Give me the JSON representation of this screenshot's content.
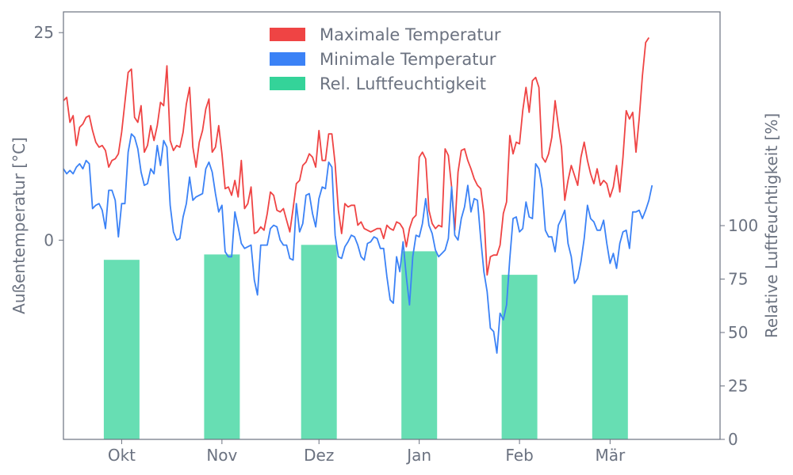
{
  "chart_data": {
    "type": "combo",
    "y_left_label": "Außentemperatur [°C]",
    "y_right_label": "Relative Luftfeuchtigkeit [%]",
    "y_left_lim": [
      -24,
      27.5
    ],
    "y_right_lim": [
      0,
      200
    ],
    "y_left_ticks": [
      0,
      25
    ],
    "y_right_ticks": [
      0,
      25,
      50,
      75,
      100
    ],
    "x_lim": [
      "2016-09-13",
      "2017-04-04"
    ],
    "x_ticks": [
      {
        "date": "2016-10-01",
        "label": "Okt"
      },
      {
        "date": "2016-11-01",
        "label": "Nov"
      },
      {
        "date": "2016-12-01",
        "label": "Dez"
      },
      {
        "date": "2017-01-01",
        "label": "Jan"
      },
      {
        "date": "2017-02-01",
        "label": "Feb"
      },
      {
        "date": "2017-03-01",
        "label": "Mär"
      }
    ],
    "legend": {
      "position": "top-center",
      "items": [
        {
          "label": "Maximale Temperatur",
          "color": "#ef4444"
        },
        {
          "label": "Minimale Temperatur",
          "color": "#3b82f6"
        },
        {
          "label": "Rel. Luftfeuchtigkeit",
          "color": "#34d399"
        }
      ]
    },
    "humidity_bars": [
      {
        "month": "Okt",
        "date": "2016-10-01",
        "value": 84
      },
      {
        "month": "Nov",
        "date": "2016-11-01",
        "value": 86.5
      },
      {
        "month": "Dez",
        "date": "2016-12-01",
        "value": 91
      },
      {
        "month": "Jan",
        "date": "2017-01-01",
        "value": 88
      },
      {
        "month": "Feb",
        "date": "2017-02-01",
        "value": 77
      },
      {
        "month": "Mär",
        "date": "2017-03-01",
        "value": 67.5
      }
    ],
    "series": [
      {
        "name": "Maximale Temperatur",
        "color": "#ef4444",
        "start_date": "2016-09-13",
        "step_days": 1,
        "values": [
          16.8,
          17.2,
          14.2,
          15.0,
          11.4,
          13.6,
          14.0,
          14.8,
          15.0,
          13.2,
          11.8,
          11.2,
          11.4,
          10.8,
          8.8,
          9.6,
          9.8,
          10.4,
          13.0,
          16.6,
          20.2,
          20.6,
          14.8,
          14.2,
          16.2,
          10.6,
          11.4,
          13.8,
          12.0,
          13.8,
          16.6,
          16.2,
          21.0,
          12.0,
          10.8,
          11.4,
          11.2,
          13.0,
          16.4,
          18.4,
          11.2,
          8.8,
          11.8,
          13.2,
          15.8,
          17.0,
          10.6,
          11.2,
          13.8,
          10.4,
          6.2,
          6.4,
          5.4,
          7.2,
          5.2,
          9.6,
          3.8,
          4.4,
          6.4,
          0.8,
          1.0,
          1.6,
          1.2,
          3.2,
          5.8,
          5.4,
          3.6,
          3.4,
          3.8,
          2.4,
          1.0,
          3.8,
          6.8,
          7.2,
          9.0,
          9.4,
          10.4,
          10.0,
          8.8,
          13.2,
          9.6,
          9.6,
          12.8,
          12.8,
          9.2,
          3.6,
          0.8,
          4.4,
          4.0,
          4.2,
          4.2,
          1.8,
          2.2,
          1.4,
          1.2,
          1.0,
          1.2,
          1.4,
          1.4,
          0.2,
          1.8,
          1.4,
          1.2,
          2.2,
          2.0,
          1.4,
          -0.8,
          1.4,
          2.6,
          3.0,
          10.0,
          10.6,
          9.8,
          3.6,
          2.0,
          1.4,
          1.8,
          1.6,
          11.0,
          10.2,
          6.4,
          1.2,
          8.2,
          10.8,
          11.0,
          9.6,
          8.6,
          7.4,
          6.6,
          6.2,
          3.2,
          -4.2,
          -2.0,
          -1.8,
          -1.8,
          -0.6,
          3.2,
          4.6,
          12.6,
          10.4,
          11.8,
          11.6,
          15.6,
          18.4,
          15.4,
          19.2,
          19.6,
          18.4,
          10.0,
          9.4,
          10.4,
          12.4,
          16.8,
          13.8,
          11.2,
          4.8,
          7.2,
          9.0,
          7.8,
          6.6,
          10.0,
          11.8,
          9.6,
          8.0,
          6.8,
          8.6,
          6.6,
          7.2,
          6.8,
          5.2,
          6.4,
          9.0,
          5.8,
          10.0,
          15.6,
          14.6,
          15.4,
          10.6,
          14.6,
          19.8,
          23.8,
          24.4
        ]
      },
      {
        "name": "Minimale Temperatur",
        "color": "#3b82f6",
        "start_date": "2016-09-13",
        "step_days": 1,
        "values": [
          8.6,
          8.0,
          8.4,
          8.0,
          8.8,
          9.2,
          8.6,
          9.6,
          9.2,
          3.8,
          4.2,
          4.4,
          3.6,
          1.4,
          6.0,
          6.0,
          4.8,
          0.4,
          4.4,
          4.4,
          10.6,
          12.8,
          12.4,
          11.0,
          8.2,
          6.6,
          6.8,
          8.6,
          8.0,
          11.4,
          9.0,
          12.0,
          11.2,
          4.2,
          1.0,
          0.0,
          0.2,
          2.8,
          4.4,
          7.6,
          4.8,
          5.2,
          5.4,
          5.6,
          8.6,
          9.4,
          8.2,
          5.6,
          3.4,
          4.2,
          -1.4,
          -2.0,
          -2.0,
          3.4,
          1.6,
          -0.4,
          -1.0,
          -0.8,
          -0.6,
          -4.8,
          -6.6,
          -0.6,
          -0.6,
          -0.6,
          1.4,
          1.8,
          1.6,
          0.0,
          -0.6,
          -0.6,
          -2.2,
          -2.4,
          4.4,
          1.0,
          2.0,
          5.4,
          5.6,
          3.2,
          1.6,
          5.0,
          6.4,
          6.2,
          9.4,
          8.8,
          0.6,
          -2.0,
          -2.2,
          -0.8,
          -0.2,
          0.6,
          0.4,
          -0.6,
          -2.0,
          -2.4,
          -0.4,
          -0.2,
          0.4,
          0.2,
          -1.0,
          -1.0,
          -4.4,
          -7.2,
          -7.6,
          -2.0,
          -3.8,
          -0.2,
          -4.4,
          -7.8,
          -2.0,
          0.6,
          0.4,
          2.0,
          5.0,
          1.8,
          0.8,
          -1.2,
          -2.0,
          -1.6,
          -1.2,
          0.2,
          6.4,
          0.6,
          0.0,
          2.6,
          4.0,
          6.6,
          3.4,
          5.0,
          4.8,
          0.2,
          -3.8,
          -6.2,
          -10.6,
          -11.0,
          -13.6,
          -8.8,
          -9.6,
          -7.8,
          -2.2,
          2.6,
          2.8,
          1.0,
          1.4,
          4.6,
          2.8,
          2.6,
          9.2,
          8.6,
          6.2,
          1.2,
          0.4,
          0.4,
          -1.4,
          1.8,
          2.6,
          3.6,
          -0.4,
          -2.0,
          -5.2,
          -4.6,
          -2.6,
          0.2,
          4.2,
          2.6,
          2.2,
          1.2,
          1.2,
          2.4,
          -0.4,
          -2.8,
          -1.6,
          -3.4,
          -0.4,
          1.0,
          1.2,
          -1.0,
          3.4,
          3.4,
          3.6,
          2.6,
          3.6,
          4.8,
          6.6
        ]
      }
    ]
  }
}
